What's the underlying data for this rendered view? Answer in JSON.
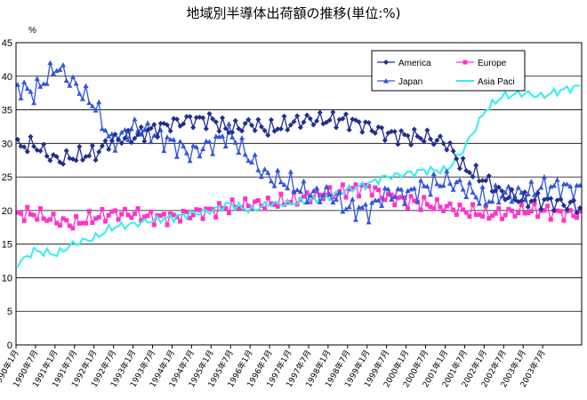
{
  "chart_data": {
    "type": "line",
    "title": "地域別半導体出荷額の推移(単位:%)",
    "ylabel": "%",
    "xlabel": "",
    "ylim": [
      0,
      45
    ],
    "yticks": [
      0,
      5,
      10,
      15,
      20,
      25,
      30,
      35,
      40,
      45
    ],
    "grid": true,
    "legend_position": "top-right",
    "x_start": "1990-01",
    "x_end": "2004-06",
    "xtick_labels": [
      "1990年1月",
      "1990年7月",
      "1991年1月",
      "1991年7月",
      "1992年1月",
      "1992年7月",
      "1993年1月",
      "1993年7月",
      "1994年1月",
      "1994年7月",
      "1995年1月",
      "1995年7月",
      "1996年1月",
      "1996年7月",
      "1997年1月",
      "1997年7月",
      "1998年1月",
      "1998年7月",
      "1999年1月",
      "1999年7月",
      "2000年1月",
      "2000年7月",
      "2001年1月",
      "2001年7月",
      "2002年1月",
      "2002年7月",
      "2003年1月",
      "2003年7月"
    ],
    "x_knots": [
      "1990-01",
      "1990-06",
      "1991-01",
      "1991-06",
      "1992-01",
      "1992-06",
      "1993-01",
      "1993-06",
      "1994-01",
      "1994-06",
      "1995-01",
      "1995-06",
      "1996-01",
      "1996-06",
      "1997-01",
      "1997-06",
      "1998-01",
      "1998-06",
      "1999-01",
      "1999-06",
      "2000-01",
      "2000-06",
      "2001-01",
      "2001-06",
      "2002-01",
      "2002-06",
      "2003-01",
      "2003-06",
      "2004-01",
      "2004-06"
    ],
    "series": [
      {
        "name": "America",
        "color": "#1f2f8f",
        "marker": "diamond",
        "values": [
          29.5,
          29.8,
          27.5,
          28.0,
          28.5,
          30.5,
          31.0,
          32.0,
          33.0,
          33.5,
          33.5,
          32.0,
          33.0,
          32.0,
          33.0,
          33.5,
          33.5,
          33.5,
          32.5,
          31.5,
          31.0,
          31.0,
          30.0,
          26.5,
          24.5,
          22.5,
          21.5,
          21.5,
          21.0,
          20.5
        ],
        "jitter": 1.4
      },
      {
        "name": "Europe",
        "color": "#ff33cc",
        "marker": "square",
        "values": [
          19.5,
          19.5,
          18.5,
          18.0,
          19.0,
          19.5,
          19.5,
          19.0,
          19.0,
          19.5,
          20.0,
          20.5,
          21.0,
          21.0,
          21.5,
          22.0,
          22.5,
          23.0,
          23.5,
          22.0,
          21.5,
          21.0,
          20.5,
          20.0,
          19.5,
          19.5,
          20.0,
          20.0,
          19.5,
          19.5
        ],
        "jitter": 1.2
      },
      {
        "name": "Japan",
        "color": "#3355dd",
        "marker": "triangle",
        "values": [
          38.5,
          37.5,
          41.5,
          39.0,
          35.5,
          30.0,
          32.5,
          31.5,
          30.0,
          28.5,
          30.0,
          31.5,
          27.5,
          25.0,
          24.0,
          22.5,
          22.5,
          20.5,
          20.0,
          22.5,
          22.5,
          23.5,
          24.5,
          23.5,
          21.5,
          22.5,
          22.5,
          23.5,
          23.5,
          23.0
        ],
        "jitter": 1.8
      },
      {
        "name": "Asia Paci",
        "color": "#33eeee",
        "marker": "none",
        "values": [
          12.0,
          14.0,
          13.5,
          15.0,
          16.0,
          17.5,
          18.0,
          18.5,
          19.0,
          19.5,
          20.0,
          21.0,
          20.0,
          21.0,
          21.0,
          21.5,
          22.0,
          23.0,
          24.0,
          25.0,
          25.5,
          26.0,
          26.0,
          29.0,
          35.0,
          37.0,
          37.5,
          37.0,
          38.0,
          38.5
        ],
        "jitter": 0.7
      }
    ]
  }
}
